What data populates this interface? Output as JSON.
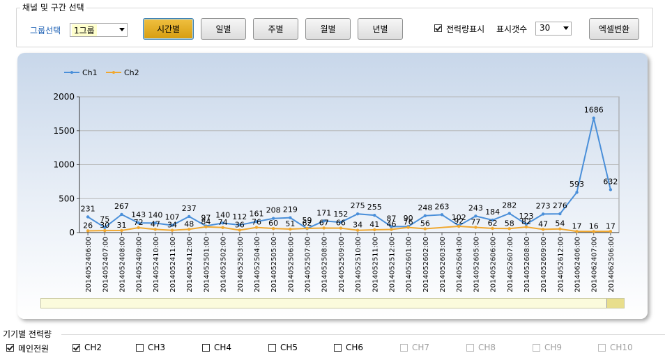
{
  "header": {
    "section_title": "채널 및 구간 선택",
    "group_label": "그룹선택",
    "group_value": "1그룹",
    "buttons": [
      "시간별",
      "일별",
      "주별",
      "월별",
      "년별"
    ],
    "active_button": "시간별",
    "show_power_label": "전력량표시",
    "show_power_checked": true,
    "display_count_label": "표시갯수",
    "display_count_value": "30",
    "excel_label": "엑셀변환"
  },
  "chart_data": {
    "type": "line",
    "title": "",
    "xlabel": "",
    "ylabel": "",
    "ylim": [
      0,
      2000
    ],
    "yticks": [
      "0",
      "500",
      "1000",
      "1500",
      "2000"
    ],
    "legend_position": "top-left",
    "grid": true,
    "categories": [
      "2014052406:00",
      "2014052407:00",
      "2014052408:00",
      "2014052409:00",
      "2014052410:00",
      "2014052411:00",
      "2014052412:00",
      "2014052501:00",
      "2014052502:00",
      "2014052503:00",
      "2014052504:00",
      "2014052505:00",
      "2014052506:00",
      "2014052507:00",
      "2014052508:00",
      "2014052509:00",
      "2014052510:00",
      "2014052511:00",
      "2014052512:00",
      "2014052601:00",
      "2014052602:00",
      "2014052603:00",
      "2014052604:00",
      "2014052605:00",
      "2014052606:00",
      "2014052607:00",
      "2014052608:00",
      "2014052609:00",
      "2014052612:00",
      "2014062406:00",
      "2014062407:00",
      "2014062506:00"
    ],
    "series": [
      {
        "name": "Ch1",
        "color": "#4a8fd9",
        "values": [
          231,
          75,
          267,
          143,
          140,
          107,
          237,
          97,
          140,
          112,
          161,
          208,
          219,
          59,
          171,
          152,
          275,
          255,
          87,
          90,
          248,
          263,
          102,
          243,
          184,
          282,
          123,
          273,
          276,
          593,
          1686,
          632
        ]
      },
      {
        "name": "Ch2",
        "color": "#f0a830",
        "values": [
          26,
          30,
          31,
          72,
          47,
          34,
          48,
          84,
          74,
          36,
          76,
          60,
          51,
          62,
          67,
          66,
          34,
          41,
          46,
          76,
          56,
          null,
          92,
          77,
          62,
          58,
          82,
          47,
          54,
          17,
          16,
          17
        ]
      }
    ]
  },
  "device_section": {
    "title": "기기별 전력량",
    "channels": [
      {
        "label": "메인전원",
        "checked": true,
        "enabled": true
      },
      {
        "label": "CH2",
        "checked": true,
        "enabled": true
      },
      {
        "label": "CH3",
        "checked": false,
        "enabled": true
      },
      {
        "label": "CH4",
        "checked": false,
        "enabled": true
      },
      {
        "label": "CH5",
        "checked": false,
        "enabled": true
      },
      {
        "label": "CH6",
        "checked": false,
        "enabled": true
      },
      {
        "label": "CH7",
        "checked": false,
        "enabled": false
      },
      {
        "label": "CH8",
        "checked": false,
        "enabled": false
      },
      {
        "label": "CH9",
        "checked": false,
        "enabled": false
      },
      {
        "label": "CH10",
        "checked": false,
        "enabled": false
      }
    ]
  }
}
